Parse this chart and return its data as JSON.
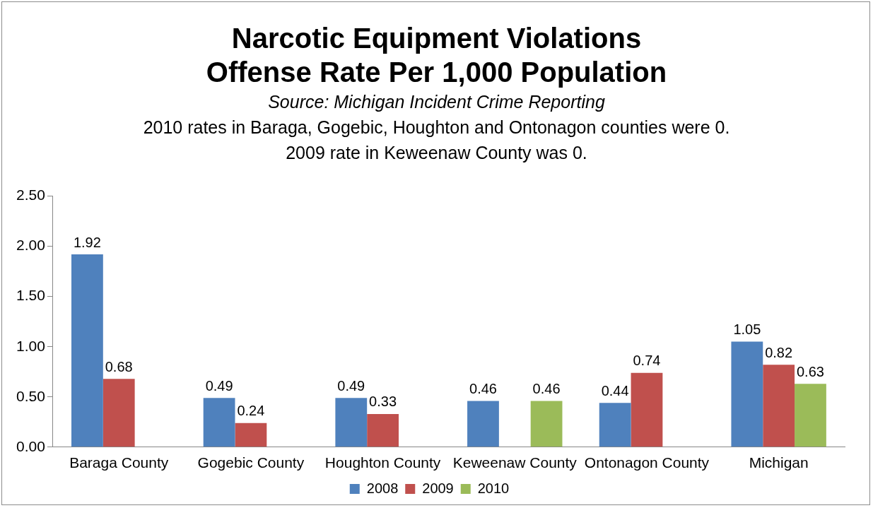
{
  "chart_data": {
    "type": "bar",
    "title": "Narcotic Equipment Violations\nOffense Rate Per 1,000 Population",
    "annotations": [
      "Source:  Michigan Incident Crime Reporting",
      "2010 rates in Baraga, Gogebic, Houghton and Ontonagon counties were 0.",
      "2009 rate in Keweenaw County was 0."
    ],
    "categories": [
      "Baraga County",
      "Gogebic County",
      "Houghton County",
      "Keweenaw County",
      "Ontonagon County",
      "Michigan"
    ],
    "series": [
      {
        "name": "2008",
        "color": "#4f81bd",
        "values": [
          1.92,
          0.49,
          0.49,
          0.46,
          0.44,
          1.05
        ],
        "value_labels": [
          "1.92",
          "0.49",
          "0.49",
          "0.46",
          "0.44",
          "1.05"
        ]
      },
      {
        "name": "2009",
        "color": "#c0504d",
        "values": [
          0.68,
          0.24,
          0.33,
          0,
          0.74,
          0.82
        ],
        "value_labels": [
          "0.68",
          "0.24",
          "0.33",
          null,
          "0.74",
          "0.82"
        ]
      },
      {
        "name": "2010",
        "color": "#9bbb59",
        "values": [
          0,
          0,
          0,
          0.46,
          0,
          0.63
        ],
        "value_labels": [
          null,
          null,
          null,
          "0.46",
          null,
          "0.63"
        ]
      }
    ],
    "ylim": [
      0,
      2.5
    ],
    "yticks": [
      {
        "value": 0,
        "label": "0.00"
      },
      {
        "value": 0.5,
        "label": "0.50"
      },
      {
        "value": 1,
        "label": "1.00"
      },
      {
        "value": 1.5,
        "label": "1.50"
      },
      {
        "value": 2,
        "label": "2.00"
      },
      {
        "value": 2.5,
        "label": "2.50"
      }
    ],
    "grid": false,
    "legend": "bottom"
  }
}
